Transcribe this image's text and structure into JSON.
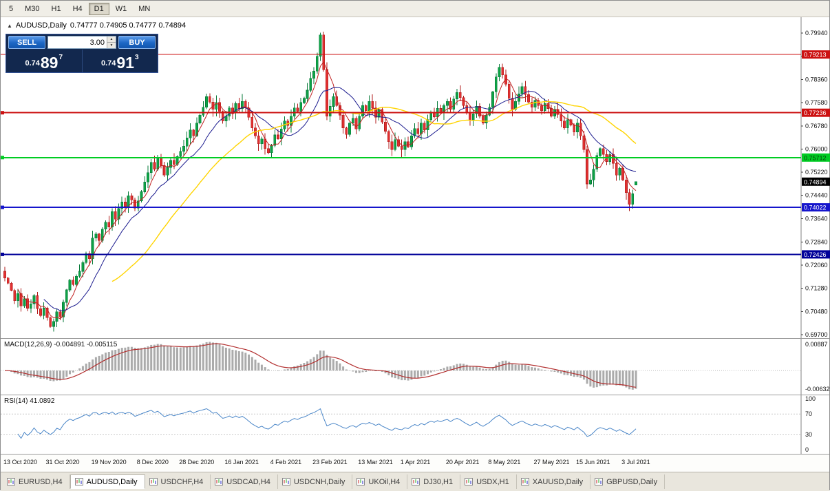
{
  "colors": {
    "candle_up": "#0fa246",
    "candle_up_border": "#067a38",
    "candle_down": "#e03131",
    "candle_down_border": "#b01b1b",
    "macd_histogram": "#ababab",
    "macd_signal": "#b22e2e",
    "rsi_line": "#4a86c8",
    "trade_panel_bg": "#12284e",
    "trade_button_blue": "#1c66c4",
    "current_price_tag_bg": "#000000"
  },
  "icons": {
    "collapse_glyph": "▲",
    "spinner_up_glyph": "▲",
    "spinner_down_glyph": "▼"
  },
  "toolbar": {
    "timeframes": [
      "5",
      "M30",
      "H1",
      "H4",
      "D1",
      "W1",
      "MN"
    ],
    "active": "D1"
  },
  "chart_header": {
    "symbol": "AUDUSD,Daily",
    "ohlc": "0.74777 0.74905 0.74777 0.74894"
  },
  "trade_panel": {
    "sell_label": "SELL",
    "buy_label": "BUY",
    "volume": "3.00",
    "sell_price": {
      "prefix": "0.74",
      "big": "89",
      "sup": "7"
    },
    "buy_price": {
      "prefix": "0.74",
      "big": "91",
      "sup": "3"
    }
  },
  "indicators": {
    "macd_header": "MACD(12,26,9) -0.004891 -0.005115",
    "rsi_header": "RSI(14) 41.0892"
  },
  "tabs": [
    {
      "label": "EURUSD,H4",
      "active": false
    },
    {
      "label": "AUDUSD,Daily",
      "active": true
    },
    {
      "label": "USDCHF,H4",
      "active": false
    },
    {
      "label": "USDCAD,H4",
      "active": false
    },
    {
      "label": "USDCNH,Daily",
      "active": false
    },
    {
      "label": "UKOil,H4",
      "active": false
    },
    {
      "label": "DJ30,H1",
      "active": false
    },
    {
      "label": "USDX,H1",
      "active": false
    },
    {
      "label": "XAUUSD,Daily",
      "active": false
    },
    {
      "label": "GBPUSD,Daily",
      "active": false
    }
  ],
  "chart_data": {
    "type": "candlestick",
    "symbol": "AUDUSD",
    "timeframe": "Daily",
    "y_range": [
      0.697,
      0.7994
    ],
    "y_ticks": [
      0.7994,
      0.7916,
      0.7836,
      0.7758,
      0.7678,
      0.76,
      0.7522,
      0.7444,
      0.7364,
      0.7284,
      0.7206,
      0.7128,
      0.7048,
      0.697
    ],
    "x_labels": [
      {
        "label": "13 Oct 2020",
        "bar": 0
      },
      {
        "label": "31 Oct 2020",
        "bar": 13
      },
      {
        "label": "19 Nov 2020",
        "bar": 27
      },
      {
        "label": "8 Dec 2020",
        "bar": 41
      },
      {
        "label": "28 Dec 2020",
        "bar": 54
      },
      {
        "label": "16 Jan 2021",
        "bar": 68
      },
      {
        "label": "4 Feb 2021",
        "bar": 82
      },
      {
        "label": "23 Feb 2021",
        "bar": 95
      },
      {
        "label": "13 Mar 2021",
        "bar": 109
      },
      {
        "label": "1 Apr 2021",
        "bar": 122
      },
      {
        "label": "20 Apr 2021",
        "bar": 136
      },
      {
        "label": "8 May 2021",
        "bar": 149
      },
      {
        "label": "27 May 2021",
        "bar": 163
      },
      {
        "label": "15 Jun 2021",
        "bar": 176
      },
      {
        "label": "3 Jul 2021",
        "bar": 190
      }
    ],
    "closes": [
      0.7162,
      0.7145,
      0.712,
      0.7085,
      0.711,
      0.7068,
      0.7092,
      0.706,
      0.7075,
      0.7102,
      0.7058,
      0.7035,
      0.706,
      0.7028,
      0.6998,
      0.7015,
      0.7048,
      0.703,
      0.708,
      0.7122,
      0.7155,
      0.714,
      0.7168,
      0.7185,
      0.7215,
      0.7245,
      0.7228,
      0.7298,
      0.7312,
      0.729,
      0.7328,
      0.7352,
      0.7335,
      0.7388,
      0.7362,
      0.7398,
      0.742,
      0.7405,
      0.7442,
      0.7428,
      0.74,
      0.7424,
      0.7455,
      0.7488,
      0.752,
      0.7555,
      0.7532,
      0.757,
      0.7545,
      0.7512,
      0.7538,
      0.7562,
      0.7548,
      0.7575,
      0.7592,
      0.761,
      0.7638,
      0.7665,
      0.7645,
      0.7688,
      0.7715,
      0.7742,
      0.7778,
      0.776,
      0.7735,
      0.7758,
      0.7728,
      0.7695,
      0.7712,
      0.774,
      0.7722,
      0.7755,
      0.7738,
      0.7762,
      0.774,
      0.7708,
      0.7672,
      0.7645,
      0.7618,
      0.7635,
      0.7602,
      0.7588,
      0.7612,
      0.7648,
      0.7635,
      0.7668,
      0.7695,
      0.768,
      0.7712,
      0.774,
      0.7728,
      0.7758,
      0.7772,
      0.78,
      0.784,
      0.7865,
      0.7915,
      0.7988,
      0.787,
      0.7712,
      0.7745,
      0.7778,
      0.7748,
      0.7715,
      0.7672,
      0.765,
      0.7688,
      0.7705,
      0.7668,
      0.7712,
      0.7748,
      0.773,
      0.7762,
      0.774,
      0.7708,
      0.7735,
      0.7692,
      0.766,
      0.7625,
      0.7598,
      0.7632,
      0.761,
      0.7598,
      0.7625,
      0.7608,
      0.7645,
      0.767,
      0.7652,
      0.7688,
      0.7665,
      0.77,
      0.7725,
      0.771,
      0.7738,
      0.7722,
      0.7748,
      0.7762,
      0.7735,
      0.777,
      0.7792,
      0.7775,
      0.7748,
      0.7722,
      0.7698,
      0.772,
      0.7745,
      0.7712,
      0.7688,
      0.7715,
      0.7742,
      0.7795,
      0.7845,
      0.7878,
      0.7852,
      0.782,
      0.7772,
      0.7735,
      0.7762,
      0.7788,
      0.7812,
      0.7785,
      0.776,
      0.7742,
      0.7765,
      0.7748,
      0.773,
      0.7755,
      0.7738,
      0.7712,
      0.7735,
      0.7718,
      0.7695,
      0.7672,
      0.77,
      0.7682,
      0.7658,
      0.7688,
      0.7645,
      0.7598,
      0.7482,
      0.7495,
      0.7532,
      0.7578,
      0.7602,
      0.7582,
      0.7558,
      0.7582,
      0.7552,
      0.7512,
      0.7535,
      0.7495,
      0.7452,
      0.7412,
      0.7448,
      0.74894
    ],
    "last_ohlc": {
      "o": 0.74777,
      "h": 0.74905,
      "l": 0.74777,
      "c": 0.74894
    },
    "current_price": 0.74894,
    "moving_averages": [
      {
        "period": 5,
        "color": "#c02020",
        "width": 1
      },
      {
        "period": 13,
        "color": "#1c1c8f",
        "width": 1
      },
      {
        "period": 34,
        "color": "#ffd400",
        "width": 1.4
      }
    ],
    "horizontal_lines": [
      {
        "price": 0.79213,
        "color": "#cc1111",
        "width": 1,
        "label_fg": "#ffffff",
        "handle": false
      },
      {
        "price": 0.77236,
        "color": "#cc1111",
        "width": 2,
        "label_fg": "#ffffff",
        "handle": true
      },
      {
        "price": 0.75712,
        "color": "#00cc22",
        "width": 2,
        "label_fg": "#0a3d0a",
        "handle": true
      },
      {
        "price": 0.74022,
        "color": "#1515cc",
        "width": 2,
        "label_fg": "#ffffff",
        "handle": true
      },
      {
        "price": 0.72426,
        "color": "#000099",
        "width": 2,
        "label_fg": "#ffffff",
        "handle": true
      }
    ],
    "macd": {
      "fast": 12,
      "slow": 26,
      "signal": 9,
      "current_macd": -0.004891,
      "current_signal": -0.005115,
      "axis_max": 0.00887,
      "axis_min": -0.00632
    },
    "rsi": {
      "period": 14,
      "current": 41.0892,
      "axis_ticks": [
        100,
        70,
        30,
        0
      ],
      "levels": [
        70,
        30
      ]
    }
  }
}
